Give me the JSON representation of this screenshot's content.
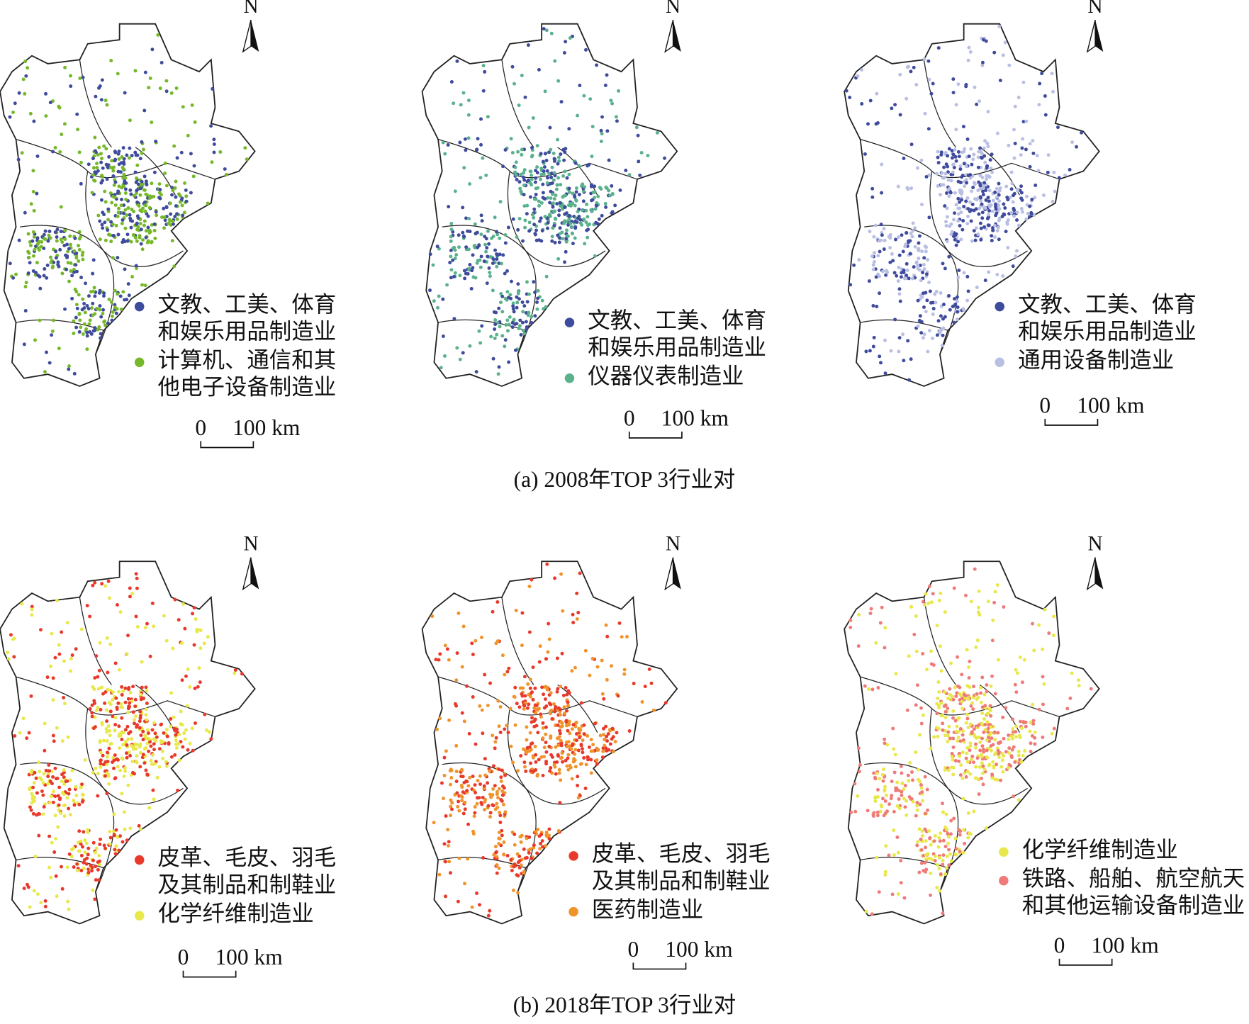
{
  "figure": {
    "groups": [
      {
        "caption": "(a) 2008年TOP 3行业对",
        "maps": [
          {
            "north": "N",
            "legend": [
              {
                "label": [
                  "文教、工美、体育",
                  "和娱乐用品制造业"
                ],
                "color": "#3f4b9c"
              },
              {
                "label": [
                  "计算机、通信和其",
                  "他电子设备制造业"
                ],
                "color": "#76b82a"
              }
            ],
            "scale": {
              "start": "0",
              "end": "100 km"
            }
          },
          {
            "north": "N",
            "legend": [
              {
                "label": [
                  "文教、工美、体育",
                  "和娱乐用品制造业"
                ],
                "color": "#3f4b9c"
              },
              {
                "label": [
                  "仪器仪表制造业"
                ],
                "color": "#5ab18c"
              }
            ],
            "scale": {
              "start": "0",
              "end": "100 km"
            }
          },
          {
            "north": "N",
            "legend": [
              {
                "label": [
                  "文教、工美、体育",
                  "和娱乐用品制造业"
                ],
                "color": "#3f4b9c"
              },
              {
                "label": [
                  "通用设备制造业"
                ],
                "color": "#b9bfe3"
              }
            ],
            "scale": {
              "start": "0",
              "end": "100 km"
            }
          }
        ]
      },
      {
        "caption": "(b) 2018年TOP 3行业对",
        "maps": [
          {
            "north": "N",
            "legend": [
              {
                "label": [
                  "皮革、毛皮、羽毛",
                  "及其制品和制鞋业"
                ],
                "color": "#e8392b"
              },
              {
                "label": [
                  "化学纤维制造业"
                ],
                "color": "#e8e84a"
              }
            ],
            "scale": {
              "start": "0",
              "end": "100 km"
            }
          },
          {
            "north": "N",
            "legend": [
              {
                "label": [
                  "皮革、毛皮、羽毛",
                  "及其制品和制鞋业"
                ],
                "color": "#e8392b"
              },
              {
                "label": [
                  "医药制造业"
                ],
                "color": "#f0932b"
              }
            ],
            "scale": {
              "start": "0",
              "end": "100 km"
            }
          },
          {
            "north": "N",
            "legend": [
              {
                "label": [
                  "化学纤维制造业"
                ],
                "color": "#e8e84a"
              },
              {
                "label": [
                  "铁路、船舶、航空航天",
                  "和其他运输设备制造业"
                ],
                "color": "#ef7b78"
              }
            ],
            "scale": {
              "start": "0",
              "end": "100 km"
            }
          }
        ]
      }
    ]
  }
}
